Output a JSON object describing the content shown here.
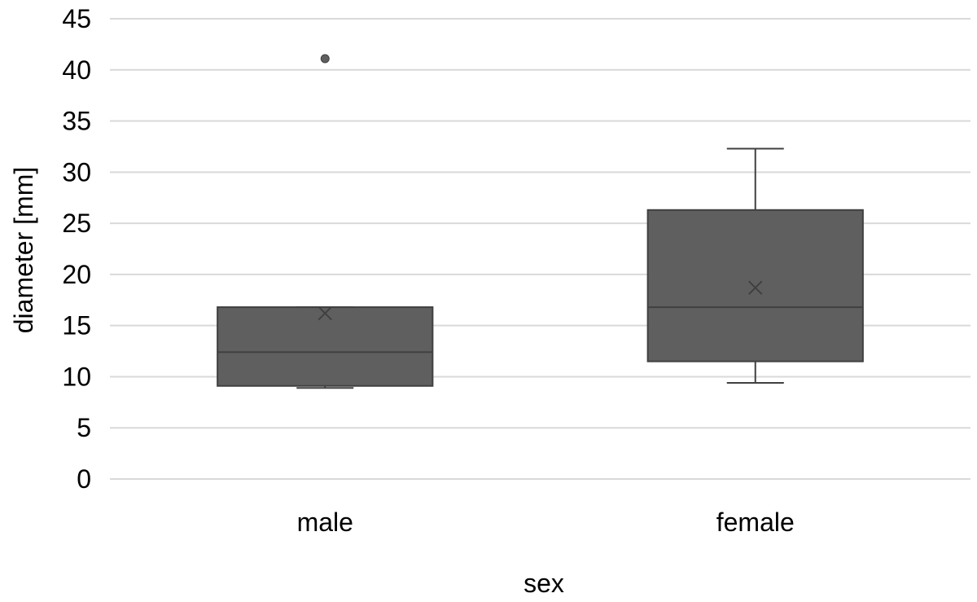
{
  "chart_data": {
    "type": "boxplot",
    "title": "",
    "xlabel": "sex",
    "ylabel": "diameter [mm]",
    "ylim": [
      0,
      45
    ],
    "yticks": [
      0,
      5,
      10,
      15,
      20,
      25,
      30,
      35,
      40,
      45
    ],
    "grid": true,
    "legend": "none",
    "categories": [
      "male",
      "female"
    ],
    "boxes": [
      {
        "category": "male",
        "whisker_low": 8.9,
        "q1": 9.1,
        "median": 12.4,
        "q3": 16.8,
        "whisker_high": 16.8,
        "mean": 16.2,
        "outliers": [
          41.1
        ]
      },
      {
        "category": "female",
        "whisker_low": 9.4,
        "q1": 11.5,
        "median": 16.8,
        "q3": 26.3,
        "whisker_high": 32.3,
        "mean": 18.7,
        "outliers": []
      }
    ],
    "colors": {
      "box": "#5f5f5f",
      "line": "#404040",
      "grid": "#d9d9d9"
    }
  }
}
